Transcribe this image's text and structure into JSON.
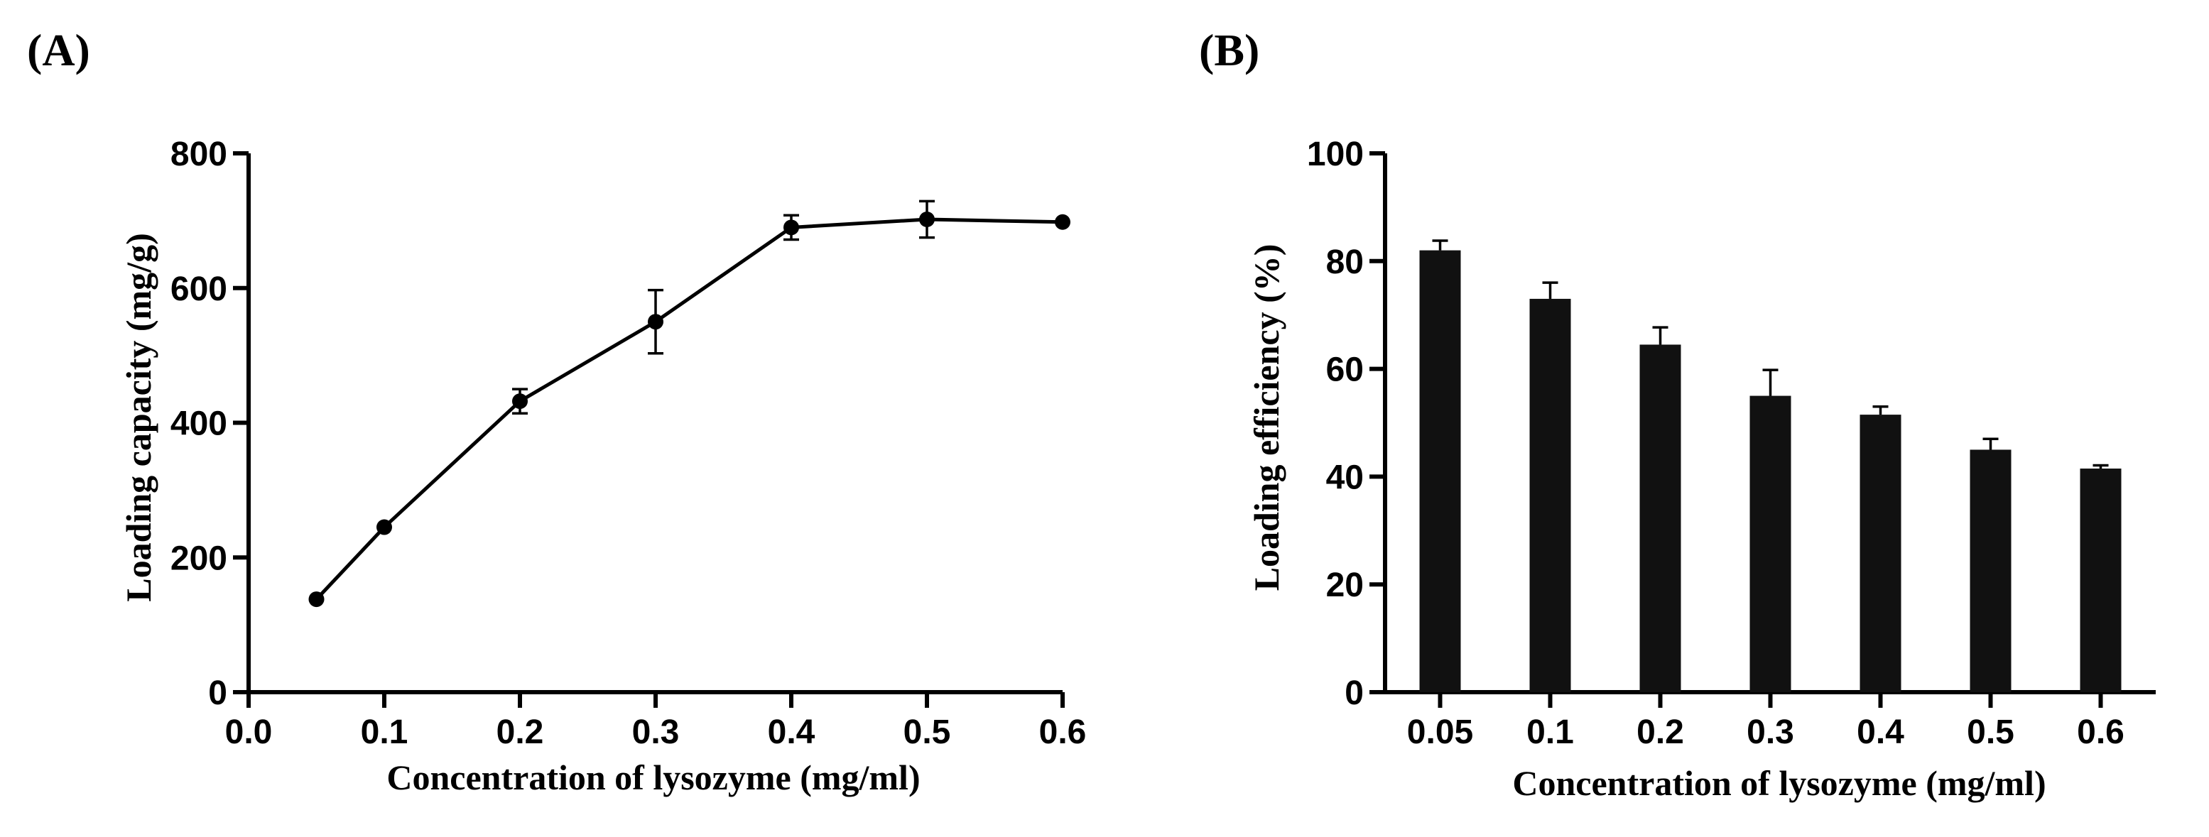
{
  "chart_data": [
    {
      "panel": "(A)",
      "type": "line",
      "xlabel": "Concentration of lysozyme (mg/ml)",
      "ylabel": "Loading capacity (mg/g)",
      "xlim": [
        0.0,
        0.6
      ],
      "ylim": [
        0,
        800
      ],
      "xticks": [
        "0.0",
        "0.1",
        "0.2",
        "0.3",
        "0.4",
        "0.5",
        "0.6"
      ],
      "xtick_values": [
        0.0,
        0.1,
        0.2,
        0.3,
        0.4,
        0.5,
        0.6
      ],
      "yticks": [
        "0",
        "200",
        "400",
        "600",
        "800"
      ],
      "ytick_values": [
        0,
        200,
        400,
        600,
        800
      ],
      "series": [
        {
          "name": "Loading capacity",
          "x": [
            0.05,
            0.1,
            0.2,
            0.3,
            0.4,
            0.5,
            0.6
          ],
          "values": [
            138,
            245,
            432,
            550,
            690,
            702,
            698
          ],
          "errors": [
            0,
            0,
            18,
            47,
            18,
            27,
            0
          ]
        }
      ],
      "color": "#000000"
    },
    {
      "panel": "(B)",
      "type": "bar",
      "xlabel": "Concentration of lysozyme (mg/ml)",
      "ylabel": "Loading efficiency (%)",
      "ylim": [
        0,
        100
      ],
      "yticks": [
        "0",
        "20",
        "40",
        "60",
        "80",
        "100"
      ],
      "ytick_values": [
        0,
        20,
        40,
        60,
        80,
        100
      ],
      "categories": [
        "0.05",
        "0.1",
        "0.2",
        "0.3",
        "0.4",
        "0.5",
        "0.6"
      ],
      "values": [
        82,
        73,
        64.5,
        55,
        51.5,
        45,
        41.5
      ],
      "errors": [
        1.8,
        3,
        3.2,
        4.8,
        1.5,
        2,
        0.6
      ],
      "color": "#111111"
    }
  ]
}
